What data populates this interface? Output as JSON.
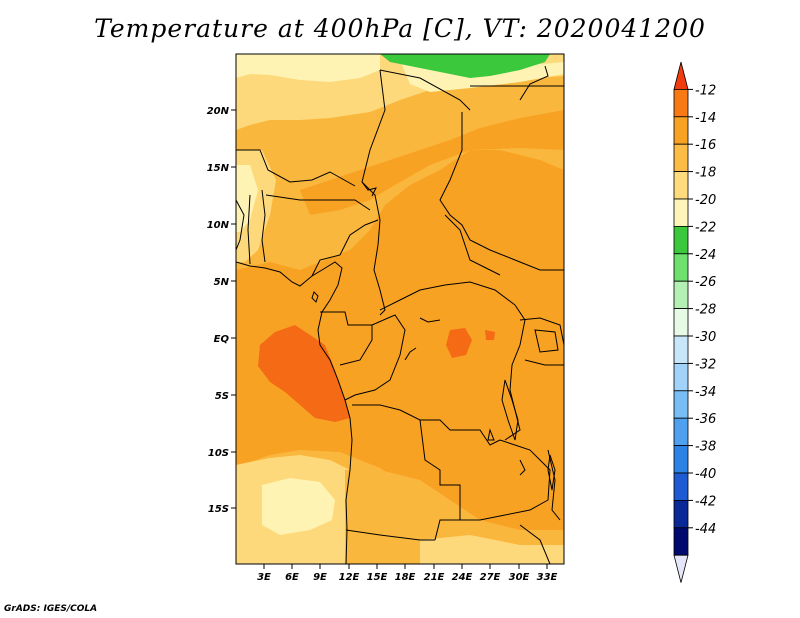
{
  "title": "Temperature at 400hPa [C], VT: 2020041200",
  "credit": "GrADS: IGES/COLA",
  "map": {
    "variable": "Temperature",
    "level": "400hPa",
    "units": "C",
    "valid_time": "2020041200",
    "lat_tick_labels": [
      "20N",
      "15N",
      "10N",
      "5N",
      "EQ",
      "5S",
      "10S",
      "15S"
    ],
    "lon_tick_labels": [
      "3E",
      "6E",
      "9E",
      "12E",
      "15E",
      "18E",
      "21E",
      "24E",
      "27E",
      "30E",
      "33E"
    ],
    "region_colors": {
      "above_-12": "#f03c0f",
      "-12_to_-14": "#f56a14",
      "-14_to_-16": "#f89c1c",
      "-16_to_-18": "#fab73d",
      "-18_to_-20": "#fdd97b",
      "-20_to_-22": "#fff3b4",
      "-22_to_-24": "#3cc83c"
    }
  },
  "colorbar": {
    "labels": [
      "-12",
      "-14",
      "-16",
      "-18",
      "-20",
      "-22",
      "-24",
      "-26",
      "-28",
      "-30",
      "-32",
      "-34",
      "-36",
      "-38",
      "-40",
      "-42",
      "-44"
    ],
    "colors": [
      "#f03c0f",
      "#f87a14",
      "#f8a224",
      "#fbbd45",
      "#fedc7e",
      "#fff5bb",
      "#3cc83c",
      "#6ee06e",
      "#b4f0b4",
      "#e6fae6",
      "#c8e6fa",
      "#a0d2fa",
      "#78bef5",
      "#50a0f0",
      "#2d82e6",
      "#1e5ad2",
      "#0a2896",
      "#000a6e",
      "#e6e6fa"
    ]
  }
}
